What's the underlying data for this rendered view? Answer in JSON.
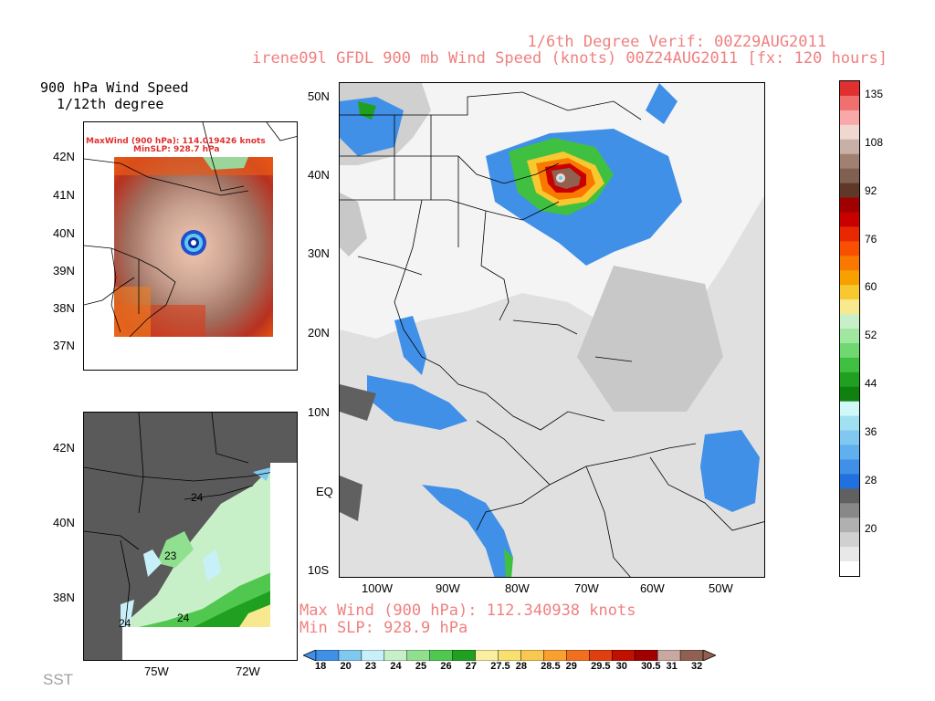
{
  "header": {
    "line1": "1/6th Degree Verif: 00Z29AUG2011",
    "line2": "irene09l GFDL 900 mb Wind Speed (knots) 00Z24AUG2011 [fx: 120 hours]"
  },
  "inset_top": {
    "title_line1": "900 hPa Wind Speed",
    "title_line2": "1/12th degree",
    "maxwind": "MaxWind (900 hPa): 114.019426 knots",
    "minslp": "MinSLP: 928.7 hPa",
    "lat_labels": [
      "42N",
      "41N",
      "40N",
      "39N",
      "38N",
      "37N"
    ]
  },
  "inset_bottom": {
    "lat_labels": [
      "42N",
      "40N",
      "38N"
    ],
    "lon_labels": [
      "75W",
      "72W"
    ],
    "contour_labels": [
      "24",
      "24",
      "23",
      "24"
    ],
    "caption": "SST"
  },
  "main_map": {
    "lat_labels": [
      "50N",
      "40N",
      "30N",
      "20N",
      "10N",
      "EQ",
      "10S"
    ],
    "lon_labels": [
      "100W",
      "90W",
      "80W",
      "70W",
      "60W",
      "50W"
    ],
    "max_wind": "Max Wind (900 hPa): 112.340938 knots",
    "min_slp": "Min SLP: 928.9 hPa"
  },
  "wind_colorbar": {
    "labels": [
      "135",
      "108",
      "92",
      "76",
      "60",
      "52",
      "44",
      "36",
      "28",
      "20"
    ],
    "colors": [
      "#e03030",
      "#f07070",
      "#f8a8a8",
      "#f0d8d0",
      "#c8b0a8",
      "#a08070",
      "#806050",
      "#603828",
      "#a00000",
      "#c80000",
      "#e82800",
      "#f85000",
      "#f87800",
      "#f8a000",
      "#f8c830",
      "#f8e890",
      "#c8f0c8",
      "#a0e8a0",
      "#70d870",
      "#40c040",
      "#20a020",
      "#108010",
      "#d0f8f8",
      "#a0e0f0",
      "#80c8f0",
      "#60b0f0",
      "#4090e8",
      "#2070e0",
      "#606060",
      "#888888",
      "#b0b0b0",
      "#d0d0d0",
      "#e8e8e8",
      "#ffffff"
    ]
  },
  "sst_colorbar": {
    "labels": [
      "18",
      "20",
      "23",
      "24",
      "25",
      "26",
      "27",
      "27.5",
      "28",
      "28.5",
      "29",
      "29.5",
      "30",
      "30.5",
      "31",
      "32"
    ],
    "colors": [
      "#4090e8",
      "#80c8f0",
      "#c8f0f8",
      "#c8f0c8",
      "#90e090",
      "#50c850",
      "#20a020",
      "#f8f0a0",
      "#f8e070",
      "#f8c850",
      "#f8a030",
      "#f07020",
      "#e04010",
      "#c01000",
      "#a00000",
      "#c8a8a0",
      "#906050"
    ]
  }
}
